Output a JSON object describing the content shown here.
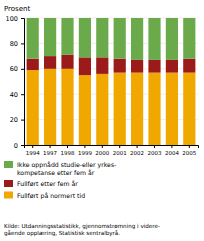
{
  "chart_data": {
    "type": "bar",
    "stacked": true,
    "y_label": "Prosent",
    "categories": [
      "1994",
      "1997",
      "1998",
      "1999",
      "2000",
      "2001",
      "2002",
      "2003",
      "2004",
      "2005"
    ],
    "series": [
      {
        "name": "Fullført på normert tid",
        "color": "#f0a800",
        "values": [
          59,
          60,
          60,
          55,
          56,
          57,
          57,
          57,
          57,
          57
        ]
      },
      {
        "name": "Fullført etter fem år",
        "color": "#9b1a1a",
        "values": [
          9,
          10,
          11,
          14,
          13,
          11,
          10,
          10,
          10,
          11
        ]
      },
      {
        "name": "Ikke oppnådd studie-eller yrkes-\nkompetanse etter fem år",
        "color": "#6aaa4b",
        "values": [
          32,
          30,
          29,
          31,
          31,
          32,
          33,
          33,
          33,
          32
        ]
      }
    ],
    "ylim": [
      0,
      100
    ],
    "yticks": [
      0,
      20,
      40,
      60,
      80,
      100
    ],
    "grid": true,
    "legend": "bottom",
    "source": "Kilde: Utdanningsstatistikk, gjennomstrømning i videre-\ngående opplæring, Statistisk sentralbyrå."
  }
}
